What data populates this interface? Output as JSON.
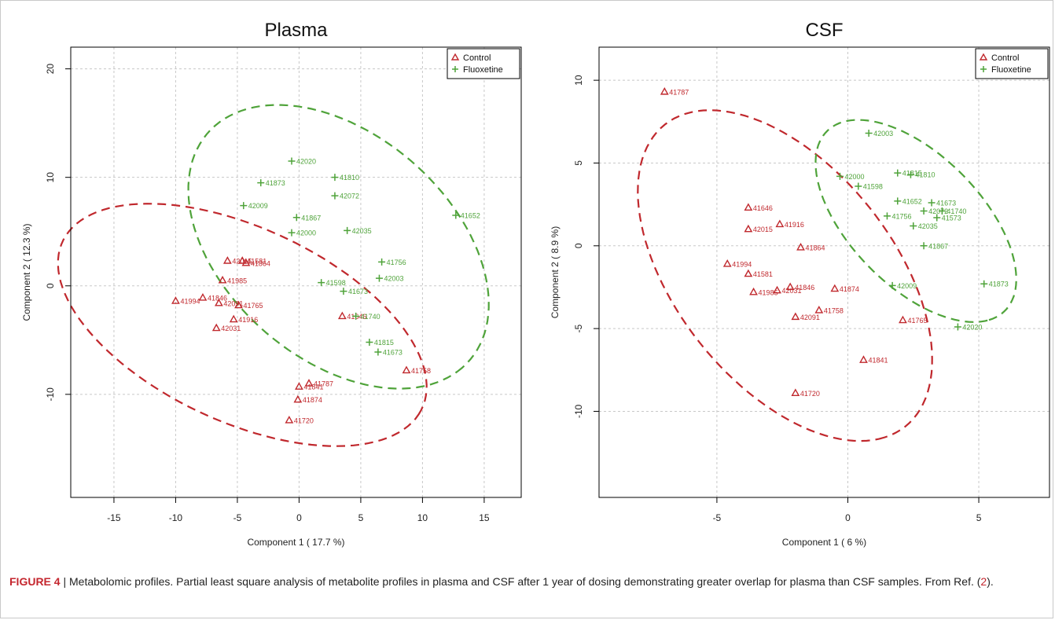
{
  "caption": {
    "label": "FIGURE 4",
    "text": " | Metabolomic profiles. Partial least square analysis of metabolite profiles in plasma and CSF after 1 year of dosing demonstrating greater overlap for plasma than CSF samples. From Ref. (",
    "ref": "2",
    "end": ")."
  },
  "colors": {
    "control": "#c0282d",
    "fluoxetine": "#4fa33a",
    "grid": "#c8c8c8",
    "axis": "#000000"
  },
  "chart_data": [
    {
      "type": "scatter",
      "title": "Plasma",
      "xlabel": "Component 1 ( 17.7 %)",
      "ylabel": "Component 2 ( 12.3 %)",
      "xlim": [
        -18.5,
        18
      ],
      "ylim": [
        -19.5,
        22
      ],
      "xticks": [
        -15,
        -10,
        -5,
        0,
        5,
        10,
        15
      ],
      "yticks": [
        -10,
        0,
        10,
        20
      ],
      "grid": true,
      "legend": "top-right",
      "series": [
        {
          "name": "Control",
          "marker": "triangle",
          "points": [
            {
              "x": -10.0,
              "y": -1.4,
              "label": "41994"
            },
            {
              "x": -7.8,
              "y": -1.1,
              "label": "41846"
            },
            {
              "x": -6.5,
              "y": -1.6,
              "label": "42091"
            },
            {
              "x": -6.2,
              "y": 0.5,
              "label": "41985"
            },
            {
              "x": -4.9,
              "y": -1.8,
              "label": "41765"
            },
            {
              "x": -5.3,
              "y": -3.1,
              "label": "41916"
            },
            {
              "x": -6.7,
              "y": -3.9,
              "label": "42031"
            },
            {
              "x": -5.8,
              "y": 2.3,
              "label": "42015"
            },
            {
              "x": -4.6,
              "y": 2.3,
              "label": "41581"
            },
            {
              "x": -4.3,
              "y": 2.1,
              "label": "41864"
            },
            {
              "x": 3.5,
              "y": -2.8,
              "label": "41646"
            },
            {
              "x": 8.7,
              "y": -7.8,
              "label": "41758"
            },
            {
              "x": 0.8,
              "y": -9.0,
              "label": "41787"
            },
            {
              "x": 0.0,
              "y": -9.3,
              "label": "41841"
            },
            {
              "x": -0.1,
              "y": -10.5,
              "label": "41874"
            },
            {
              "x": -0.8,
              "y": -12.4,
              "label": "41720"
            }
          ]
        },
        {
          "name": "Fluoxetine",
          "marker": "plus",
          "points": [
            {
              "x": -0.6,
              "y": 11.5,
              "label": "42020"
            },
            {
              "x": -3.1,
              "y": 9.5,
              "label": "41873"
            },
            {
              "x": 2.9,
              "y": 10.0,
              "label": "41810"
            },
            {
              "x": 2.9,
              "y": 8.3,
              "label": "42072"
            },
            {
              "x": -4.5,
              "y": 7.4,
              "label": "42009"
            },
            {
              "x": -0.2,
              "y": 6.3,
              "label": "41867"
            },
            {
              "x": -0.6,
              "y": 4.9,
              "label": "42000"
            },
            {
              "x": 3.9,
              "y": 5.1,
              "label": "42035"
            },
            {
              "x": 12.7,
              "y": 6.5,
              "label": "41652"
            },
            {
              "x": 6.7,
              "y": 2.2,
              "label": "41756"
            },
            {
              "x": 6.5,
              "y": 0.7,
              "label": "42003"
            },
            {
              "x": 1.8,
              "y": 0.3,
              "label": "41598"
            },
            {
              "x": 3.6,
              "y": -0.5,
              "label": "41673"
            },
            {
              "x": 4.6,
              "y": -2.8,
              "label": "41740"
            },
            {
              "x": 5.7,
              "y": -5.2,
              "label": "41815"
            },
            {
              "x": 6.4,
              "y": -6.1,
              "label": "41673"
            }
          ]
        }
      ],
      "ellipses": [
        {
          "series": "Control",
          "cx": -4.6,
          "cy": -3.6,
          "rx": 16.5,
          "ry": 8.7,
          "angle": -30
        },
        {
          "series": "Fluoxetine",
          "cx": 3.2,
          "cy": 3.6,
          "rx": 15.0,
          "ry": 9.7,
          "angle": -50
        }
      ]
    },
    {
      "type": "scatter",
      "title": "CSF",
      "xlabel": "Component 1 ( 6 %)",
      "ylabel": "Component 2 ( 8.9 %)",
      "xlim": [
        -9.5,
        7.7
      ],
      "ylim": [
        -15.2,
        12.0
      ],
      "xticks": [
        -5,
        0,
        5
      ],
      "yticks": [
        -10,
        -5,
        0,
        5,
        10
      ],
      "grid": true,
      "legend": "top-right",
      "series": [
        {
          "name": "Control",
          "marker": "triangle",
          "points": [
            {
              "x": -7.0,
              "y": 9.3,
              "label": "41787"
            },
            {
              "x": -3.8,
              "y": 2.3,
              "label": "41646"
            },
            {
              "x": -3.8,
              "y": 1.0,
              "label": "42015"
            },
            {
              "x": -2.6,
              "y": 1.3,
              "label": "41916"
            },
            {
              "x": -1.8,
              "y": -0.1,
              "label": "41864"
            },
            {
              "x": -4.6,
              "y": -1.1,
              "label": "41994"
            },
            {
              "x": -3.8,
              "y": -1.7,
              "label": "41581"
            },
            {
              "x": -2.2,
              "y": -2.5,
              "label": "41846"
            },
            {
              "x": -3.6,
              "y": -2.8,
              "label": "41985"
            },
            {
              "x": -2.7,
              "y": -2.7,
              "label": "42031"
            },
            {
              "x": -0.5,
              "y": -2.6,
              "label": "41874"
            },
            {
              "x": -1.1,
              "y": -3.9,
              "label": "41758"
            },
            {
              "x": -2.0,
              "y": -4.3,
              "label": "42091"
            },
            {
              "x": 2.1,
              "y": -4.5,
              "label": "41765"
            },
            {
              "x": 0.6,
              "y": -6.9,
              "label": "41841"
            },
            {
              "x": -2.0,
              "y": -8.9,
              "label": "41720"
            }
          ]
        },
        {
          "name": "Fluoxetine",
          "marker": "plus",
          "points": [
            {
              "x": 0.8,
              "y": 6.8,
              "label": "42003"
            },
            {
              "x": -0.3,
              "y": 4.2,
              "label": "42000"
            },
            {
              "x": 0.4,
              "y": 3.6,
              "label": "41598"
            },
            {
              "x": 1.9,
              "y": 4.4,
              "label": "41815"
            },
            {
              "x": 2.4,
              "y": 4.3,
              "label": "41810"
            },
            {
              "x": 1.9,
              "y": 2.7,
              "label": "41652"
            },
            {
              "x": 3.2,
              "y": 2.6,
              "label": "41673"
            },
            {
              "x": 2.9,
              "y": 2.1,
              "label": "42072"
            },
            {
              "x": 3.6,
              "y": 2.1,
              "label": "41740"
            },
            {
              "x": 1.5,
              "y": 1.8,
              "label": "41756"
            },
            {
              "x": 3.4,
              "y": 1.7,
              "label": "41573"
            },
            {
              "x": 2.5,
              "y": 1.2,
              "label": "42035"
            },
            {
              "x": 2.9,
              "y": 0.0,
              "label": "41867"
            },
            {
              "x": 1.7,
              "y": -2.4,
              "label": "42009"
            },
            {
              "x": 5.2,
              "y": -2.3,
              "label": "41873"
            },
            {
              "x": 4.2,
              "y": -4.9,
              "label": "42020"
            }
          ]
        }
      ],
      "ellipses": [
        {
          "series": "Control",
          "cx": -2.4,
          "cy": -1.8,
          "rx": 10.5,
          "ry": 4.6,
          "angle": -70
        },
        {
          "series": "Fluoxetine",
          "cx": 2.6,
          "cy": 1.5,
          "rx": 6.6,
          "ry": 2.9,
          "angle": -65
        }
      ]
    }
  ]
}
